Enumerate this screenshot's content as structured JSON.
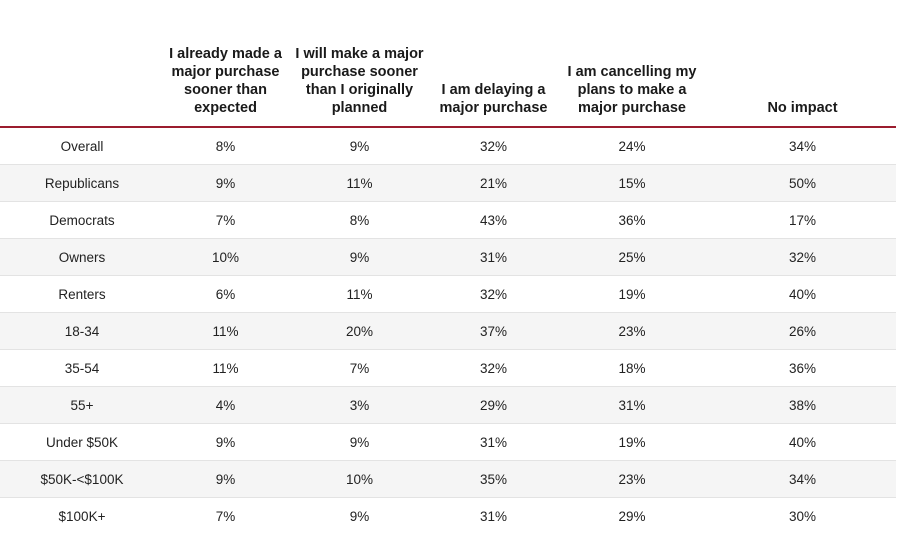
{
  "chart_data": {
    "type": "table",
    "columns": [
      "",
      "I already made a major purchase sooner than expected",
      "I will make a major purchase sooner than I originally planned",
      "I am delaying a major purchase",
      "I am cancelling my plans to make a major purchase",
      "No impact"
    ],
    "rows": [
      {
        "label": "Overall",
        "values": [
          "8%",
          "9%",
          "32%",
          "24%",
          "34%"
        ]
      },
      {
        "label": "Republicans",
        "values": [
          "9%",
          "11%",
          "21%",
          "15%",
          "50%"
        ]
      },
      {
        "label": "Democrats",
        "values": [
          "7%",
          "8%",
          "43%",
          "36%",
          "17%"
        ]
      },
      {
        "label": "Owners",
        "values": [
          "10%",
          "9%",
          "31%",
          "25%",
          "32%"
        ]
      },
      {
        "label": "Renters",
        "values": [
          "6%",
          "11%",
          "32%",
          "19%",
          "40%"
        ]
      },
      {
        "label": "18-34",
        "values": [
          "11%",
          "20%",
          "37%",
          "23%",
          "26%"
        ]
      },
      {
        "label": "35-54",
        "values": [
          "11%",
          "7%",
          "32%",
          "18%",
          "36%"
        ]
      },
      {
        "label": "55+",
        "values": [
          "4%",
          "3%",
          "29%",
          "31%",
          "38%"
        ]
      },
      {
        "label": "Under $50K",
        "values": [
          "9%",
          "9%",
          "31%",
          "19%",
          "40%"
        ]
      },
      {
        "label": "$50K-<$100K",
        "values": [
          "9%",
          "10%",
          "35%",
          "23%",
          "34%"
        ]
      },
      {
        "label": "$100K+",
        "values": [
          "7%",
          "9%",
          "31%",
          "29%",
          "30%"
        ]
      }
    ]
  },
  "colors": {
    "header_rule": "#9b1c2e",
    "stripe": "#f5f5f5",
    "row_divider": "#e3e3e3"
  }
}
